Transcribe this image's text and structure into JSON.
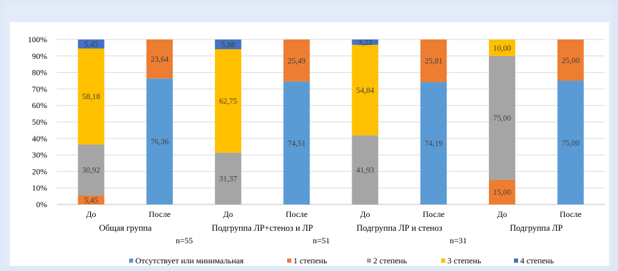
{
  "chart_data": {
    "type": "bar",
    "stacked": true,
    "normalized_100": true,
    "categories": [
      "До",
      "После",
      "До",
      "После",
      "До",
      "После",
      "До",
      "После"
    ],
    "groups": [
      {
        "label": "Общая группа",
        "n": "n=55"
      },
      {
        "label": "Подгруппа ЛР+стеноз и ЛР",
        "n": "n=51"
      },
      {
        "label": "Подгруппа ЛР и стеноз",
        "n": "n=31"
      },
      {
        "label": "Подгруппа ЛР",
        "n": ""
      }
    ],
    "series": [
      {
        "name": "Отсутствует или минимальная",
        "color": "#5b9bd5",
        "values": [
          null,
          76.36,
          null,
          74.51,
          null,
          74.19,
          null,
          75.0
        ],
        "labels": [
          "",
          "76,36",
          "",
          "74,51",
          "",
          "74,19",
          "",
          "75,00"
        ]
      },
      {
        "name": "1 степень",
        "color": "#ed7d31",
        "values": [
          5.45,
          23.64,
          null,
          25.49,
          null,
          25.81,
          15.0,
          25.0
        ],
        "labels": [
          "5,45",
          "23,64",
          "",
          "25,49",
          "",
          "25,81",
          "15,00",
          "25,00"
        ]
      },
      {
        "name": "2 степень",
        "color": "#a5a5a5",
        "values": [
          30.92,
          null,
          31.37,
          null,
          41.93,
          null,
          75.0,
          null
        ],
        "labels": [
          "30,92",
          "",
          "31,37",
          "",
          "41,93",
          "",
          "75,00",
          ""
        ]
      },
      {
        "name": "3 степень",
        "color": "#ffc000",
        "values": [
          58.18,
          null,
          62.75,
          null,
          54.84,
          null,
          10.0,
          null
        ],
        "labels": [
          "58,18",
          "",
          "62,75",
          "",
          "54,84",
          "",
          "10,00",
          ""
        ]
      },
      {
        "name": "4 степень",
        "color": "#4472c4",
        "values": [
          5.45,
          null,
          5.88,
          null,
          3.23,
          null,
          null,
          null
        ],
        "labels": [
          "5,45",
          "",
          "5,88",
          "",
          "3,23",
          "",
          "",
          ""
        ]
      }
    ],
    "y_ticks": [
      "0%",
      "10%",
      "20%",
      "30%",
      "40%",
      "50%",
      "60%",
      "70%",
      "80%",
      "90%",
      "100%"
    ],
    "ylim": [
      0,
      100
    ],
    "grid": true,
    "legend_position": "bottom"
  }
}
